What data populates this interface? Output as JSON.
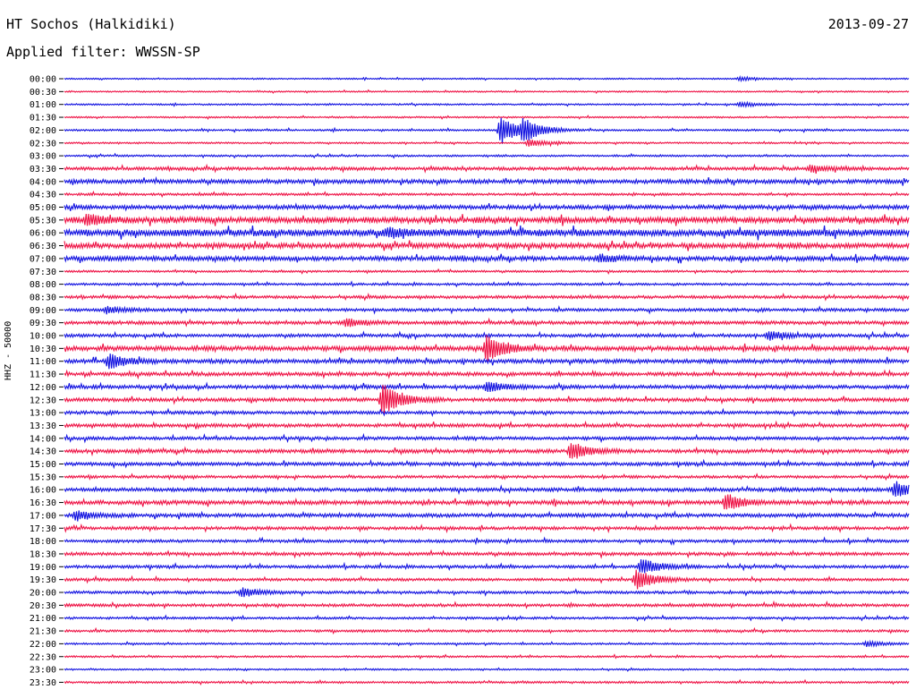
{
  "header": {
    "station": "HT Sochos (Halkidiki)",
    "date": "2013-09-27",
    "filter_label": "Applied filter:",
    "filter_value": "WWSSN-SP"
  },
  "channel_label": "HHZ - 50000",
  "colors": {
    "a": "#1010e0",
    "b": "#ee1144"
  },
  "chart_data": {
    "type": "line",
    "subtype": "helicorder",
    "ylabel": "HHZ - 50000",
    "row_colors_alternate": [
      "#1010e0",
      "#ee1144"
    ],
    "minutes_per_row": 30,
    "tick_labels": [
      "00:00",
      "00:30",
      "01:00",
      "01:30",
      "02:00",
      "02:30",
      "03:00",
      "03:30",
      "04:00",
      "04:30",
      "05:00",
      "05:30",
      "06:00",
      "06:30",
      "07:00",
      "07:30",
      "08:00",
      "08:30",
      "09:00",
      "09:30",
      "10:00",
      "10:30",
      "11:00",
      "11:30",
      "12:00",
      "12:30",
      "13:00",
      "13:30",
      "14:00",
      "14:30",
      "15:00",
      "15:30",
      "16:00",
      "16:30",
      "17:00",
      "17:30",
      "18:00",
      "18:30",
      "19:00",
      "19:30",
      "20:00",
      "20:30",
      "21:00",
      "21:30",
      "22:00",
      "22:30",
      "23:00",
      "23:30"
    ],
    "noise_level": [
      0.6,
      0.6,
      0.7,
      0.7,
      0.8,
      0.7,
      0.8,
      1.4,
      1.8,
      1.0,
      1.8,
      2.6,
      3.0,
      2.2,
      2.0,
      0.9,
      1.0,
      1.3,
      1.3,
      1.5,
      1.4,
      2.0,
      1.8,
      1.6,
      1.6,
      1.6,
      1.4,
      1.5,
      1.4,
      1.6,
      1.5,
      1.2,
      1.6,
      1.8,
      1.6,
      1.4,
      1.3,
      1.4,
      1.3,
      1.2,
      1.2,
      1.3,
      1.0,
      1.0,
      0.8,
      0.8,
      0.7,
      0.9
    ],
    "events": [
      {
        "row": 0,
        "minute": 24.0,
        "amp": 2
      },
      {
        "row": 2,
        "minute": 24.0,
        "amp": 2.5
      },
      {
        "row": 4,
        "minute": 15.5,
        "amp": 16
      },
      {
        "row": 4,
        "minute": 16.3,
        "amp": 12
      },
      {
        "row": 5,
        "minute": 16.5,
        "amp": 4
      },
      {
        "row": 7,
        "minute": 26.5,
        "amp": 4
      },
      {
        "row": 11,
        "minute": 0.8,
        "amp": 6
      },
      {
        "row": 12,
        "minute": 11.5,
        "amp": 5
      },
      {
        "row": 14,
        "minute": 19.0,
        "amp": 4
      },
      {
        "row": 18,
        "minute": 1.5,
        "amp": 4
      },
      {
        "row": 19,
        "minute": 10.0,
        "amp": 5
      },
      {
        "row": 20,
        "minute": 25.0,
        "amp": 5
      },
      {
        "row": 21,
        "minute": 15.0,
        "amp": 16
      },
      {
        "row": 22,
        "minute": 1.6,
        "amp": 8
      },
      {
        "row": 24,
        "minute": 15.0,
        "amp": 6
      },
      {
        "row": 25,
        "minute": 11.3,
        "amp": 18
      },
      {
        "row": 29,
        "minute": 18.0,
        "amp": 10
      },
      {
        "row": 32,
        "minute": 29.5,
        "amp": 9
      },
      {
        "row": 33,
        "minute": 23.5,
        "amp": 9
      },
      {
        "row": 34,
        "minute": 0.4,
        "amp": 5
      },
      {
        "row": 38,
        "minute": 20.5,
        "amp": 9
      },
      {
        "row": 39,
        "minute": 20.3,
        "amp": 12
      },
      {
        "row": 40,
        "minute": 6.3,
        "amp": 5
      },
      {
        "row": 44,
        "minute": 28.5,
        "amp": 3
      }
    ]
  }
}
